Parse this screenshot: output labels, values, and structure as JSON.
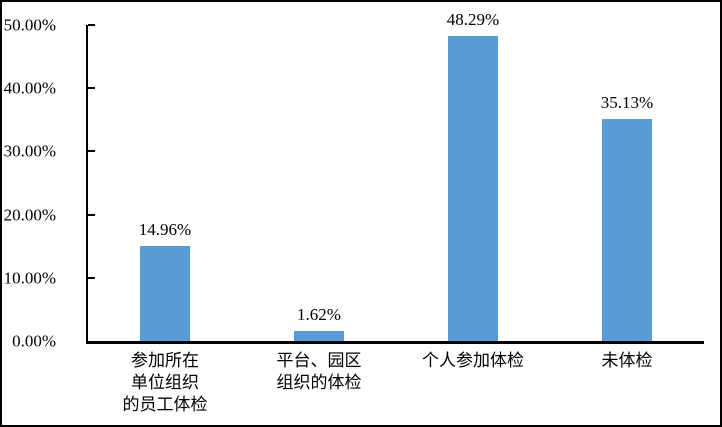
{
  "chart_data": {
    "type": "bar",
    "title": "",
    "xlabel": "",
    "ylabel": "",
    "categories": [
      "参加所在\n单位组织\n的员工体检",
      "平台、园区\n组织的体检",
      "个人参加体检",
      "未体检"
    ],
    "values": [
      14.96,
      1.62,
      48.29,
      35.13
    ],
    "value_labels": [
      "14.96%",
      "1.62%",
      "48.29%",
      "35.13%"
    ],
    "ylim": [
      0,
      50
    ],
    "y_ticks": [
      {
        "value": 0,
        "label": "0.00%"
      },
      {
        "value": 10,
        "label": "10.00%"
      },
      {
        "value": 20,
        "label": "20.00%"
      },
      {
        "value": 30,
        "label": "30.00%"
      },
      {
        "value": 40,
        "label": "40.00%"
      },
      {
        "value": 50,
        "label": "50.00%"
      }
    ],
    "grid": false,
    "legend": "none",
    "bar_color": "#5B9BD5",
    "axis_color": "#000000",
    "text_color": "#000000",
    "background_color": "#FFFFFF",
    "border_color": "#000000"
  }
}
